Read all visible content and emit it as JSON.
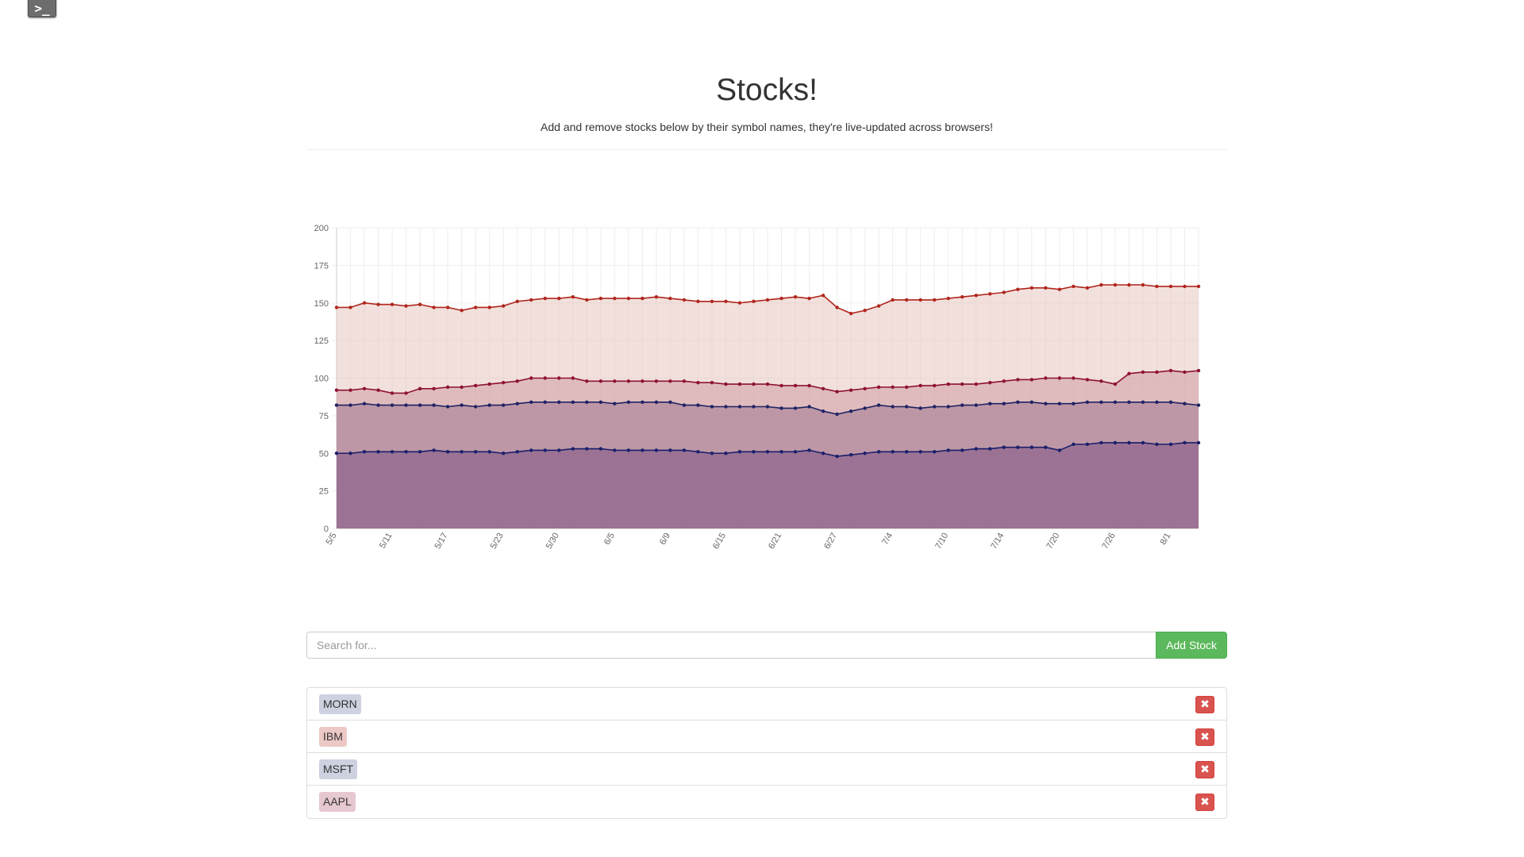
{
  "window": {
    "terminal_icon_glyph": ">_"
  },
  "header": {
    "title": "Stocks!",
    "subtitle": "Add and remove stocks below by their symbol names, they're live-updated across browsers!"
  },
  "search": {
    "placeholder": "Search for...",
    "add_label": "Add Stock"
  },
  "stocks": [
    {
      "symbol": "MORN",
      "color": "#cdd1e0",
      "remove_glyph": "✖"
    },
    {
      "symbol": "IBM",
      "color": "#ecc9c6",
      "remove_glyph": "✖"
    },
    {
      "symbol": "MSFT",
      "color": "#cdd1e0",
      "remove_glyph": "✖"
    },
    {
      "symbol": "AAPL",
      "color": "#e6c8d0",
      "remove_glyph": "✖"
    }
  ],
  "chart_data": {
    "type": "area",
    "stacked": true,
    "ylim": [
      0,
      200
    ],
    "yticks": [
      0,
      25,
      50,
      75,
      100,
      125,
      150,
      175,
      200
    ],
    "xtick_labels": [
      "5/5",
      "5/11",
      "5/17",
      "5/23",
      "5/30",
      "6/5",
      "6/9",
      "6/15",
      "6/21",
      "6/27",
      "7/4",
      "7/10",
      "7/14",
      "7/20",
      "7/26",
      "8/1"
    ],
    "xtick_every": 4,
    "points": 63,
    "grid": true,
    "series": [
      {
        "name": "MORN",
        "line_color": "#1a1f6b",
        "fill_color": "#7f5685",
        "values": [
          50,
          50,
          51,
          51,
          51,
          51,
          51,
          52,
          51,
          51,
          51,
          51,
          50,
          51,
          52,
          52,
          52,
          53,
          53,
          53,
          52,
          52,
          52,
          52,
          52,
          52,
          51,
          50,
          50,
          51,
          51,
          51,
          51,
          51,
          52,
          50,
          48,
          49,
          50,
          51,
          51,
          51,
          51,
          51,
          52,
          52,
          53,
          53,
          54,
          54,
          54,
          54,
          52,
          56,
          56,
          57,
          57,
          57,
          57,
          56,
          56,
          57,
          57
        ]
      },
      {
        "name": "MSFT",
        "line_color": "#1e2363",
        "fill_color": "#a27a94",
        "values": [
          82,
          82,
          83,
          82,
          82,
          82,
          82,
          82,
          81,
          82,
          81,
          82,
          82,
          83,
          84,
          84,
          84,
          84,
          84,
          84,
          83,
          84,
          84,
          84,
          84,
          82,
          82,
          81,
          81,
          81,
          81,
          81,
          80,
          80,
          81,
          78,
          76,
          78,
          80,
          82,
          81,
          81,
          80,
          81,
          81,
          82,
          82,
          83,
          83,
          84,
          84,
          83,
          83,
          83,
          84,
          84,
          84,
          84,
          84,
          84,
          84,
          83,
          82
        ]
      },
      {
        "name": "AAPL",
        "line_color": "#8e1232",
        "fill_color": "#cf9ca2",
        "values": [
          92,
          92,
          93,
          92,
          90,
          90,
          93,
          93,
          94,
          94,
          95,
          96,
          97,
          98,
          100,
          100,
          100,
          100,
          98,
          98,
          98,
          98,
          98,
          98,
          98,
          98,
          97,
          97,
          96,
          96,
          96,
          96,
          95,
          95,
          95,
          93,
          91,
          92,
          93,
          94,
          94,
          94,
          95,
          95,
          96,
          96,
          96,
          97,
          98,
          99,
          99,
          100,
          100,
          100,
          99,
          98,
          96,
          103,
          104,
          104,
          105,
          104,
          105
        ]
      },
      {
        "name": "IBM",
        "line_color": "#b0261c",
        "fill_color": "#e8c6c1",
        "values": [
          147,
          147,
          150,
          149,
          149,
          148,
          149,
          147,
          147,
          145,
          147,
          147,
          148,
          151,
          152,
          153,
          153,
          154,
          152,
          153,
          153,
          153,
          153,
          154,
          153,
          152,
          151,
          151,
          151,
          150,
          151,
          152,
          153,
          154,
          153,
          155,
          147,
          143,
          145,
          148,
          152,
          152,
          152,
          152,
          153,
          154,
          155,
          156,
          157,
          159,
          160,
          160,
          159,
          161,
          160,
          162,
          162,
          162,
          162,
          161,
          161,
          161,
          161
        ]
      }
    ]
  }
}
